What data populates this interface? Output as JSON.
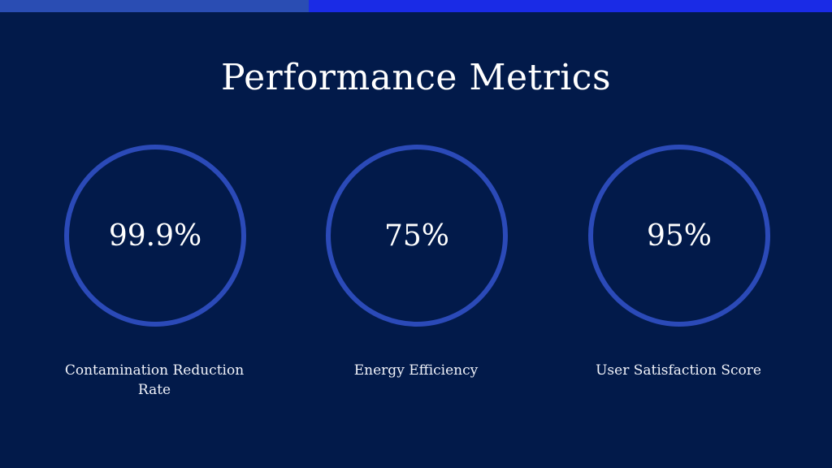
{
  "colors": {
    "background": "#021a4a",
    "topbar_left": "#2a4db3",
    "topbar_right": "#1a2be6",
    "ring": "#2b4ab8",
    "text": "#ffffff"
  },
  "title": "Performance Metrics",
  "metrics": [
    {
      "value": "99.9%",
      "label": "Contamination Reduction Rate"
    },
    {
      "value": "75%",
      "label": "Energy Efficiency"
    },
    {
      "value": "95%",
      "label": "User Satisfaction Score"
    }
  ]
}
